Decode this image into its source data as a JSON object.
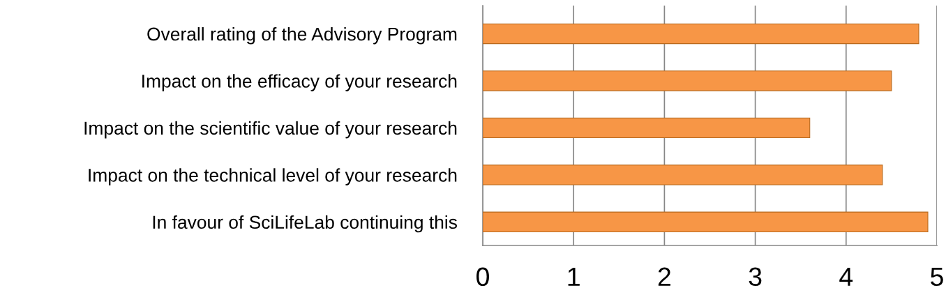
{
  "chart_data": {
    "type": "bar",
    "orientation": "horizontal",
    "categories": [
      "Overall rating of the Advisory Program",
      "Impact on the efficacy of your research",
      "Impact on the scientific value of your research",
      "Impact on the technical level of your research",
      "In favour of SciLifeLab continuing this"
    ],
    "values": [
      4.8,
      4.5,
      3.6,
      4.4,
      4.9
    ],
    "color": "#f79646",
    "xlim": [
      0,
      5
    ],
    "xticks": [
      0,
      1,
      2,
      3,
      4,
      5
    ],
    "grid": "x",
    "legend": false
  }
}
